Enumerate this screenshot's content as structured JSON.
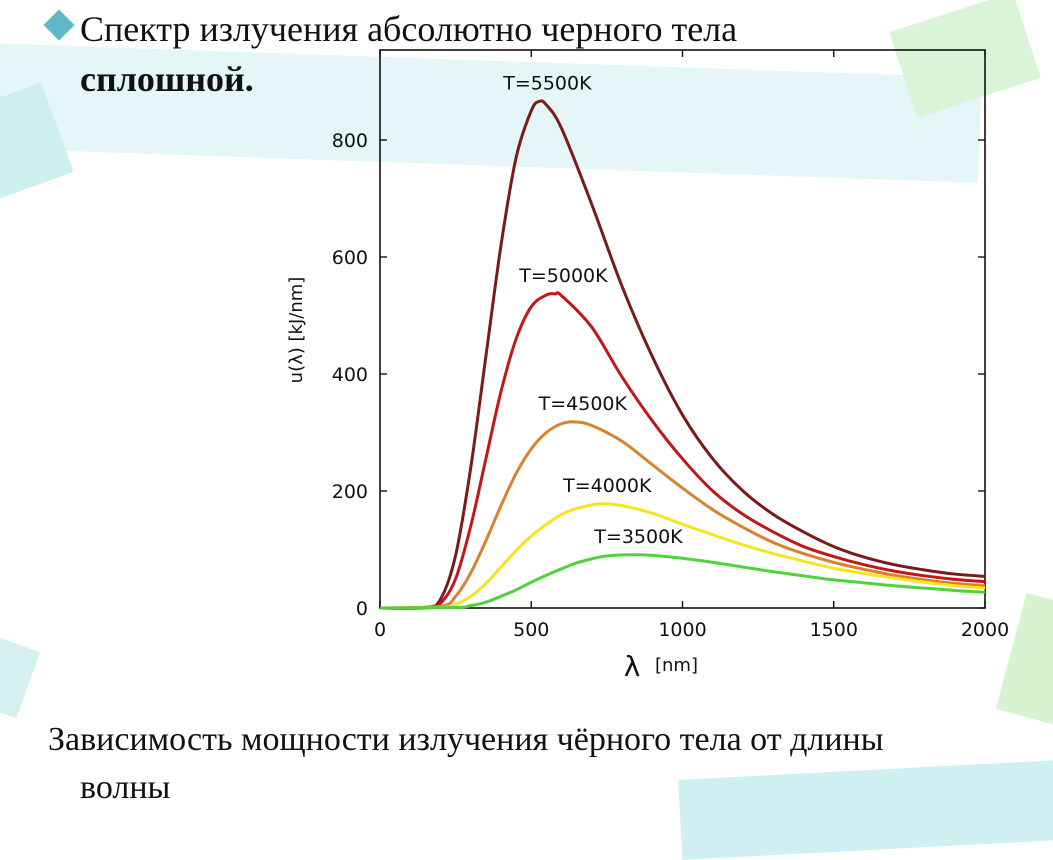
{
  "slide": {
    "title_line1": "Спектр излучения абсолютно черного тела",
    "title_line2": "сплошной.",
    "caption_line1": "Зависимость мощности излучения чёрного тела от длины",
    "caption_line2": "волны"
  },
  "colors": {
    "bullet": "#5fb8c8",
    "deco_teal": "#bfe9ee",
    "deco_green": "#d3f3c8"
  },
  "chart_data": {
    "type": "line",
    "xlabel_symbol": "λ",
    "xlabel_unit": "[nm]",
    "ylabel": "u(λ) [kJ/nm]",
    "xlim": [
      0,
      2000
    ],
    "ylim": [
      0,
      860
    ],
    "xticks": [
      0,
      500,
      1000,
      1500,
      2000
    ],
    "yticks": [
      0,
      200,
      400,
      600,
      800
    ],
    "grid": false,
    "series": [
      {
        "name": "T=5500K",
        "color": "#7a1a1a",
        "peak": [
          527,
          866
        ],
        "x": [
          0,
          150,
          200,
          250,
          300,
          350,
          400,
          450,
          500,
          527,
          550,
          600,
          700,
          800,
          900,
          1000,
          1100,
          1200,
          1300,
          1400,
          1500,
          1600,
          1700,
          1800,
          1900,
          2000
        ],
        "y": [
          0,
          1,
          15,
          90,
          240,
          430,
          620,
          770,
          850,
          866,
          860,
          820,
          690,
          550,
          430,
          330,
          255,
          200,
          160,
          130,
          105,
          87,
          74,
          65,
          58,
          54
        ]
      },
      {
        "name": "T=5000K",
        "color": "#c01818",
        "peak": [
          580,
          537
        ],
        "x": [
          0,
          150,
          200,
          250,
          300,
          350,
          400,
          450,
          500,
          550,
          580,
          600,
          700,
          800,
          900,
          1000,
          1100,
          1200,
          1300,
          1400,
          1500,
          1600,
          1700,
          1800,
          1900,
          2000
        ],
        "y": [
          0,
          0,
          8,
          50,
          140,
          255,
          370,
          460,
          515,
          535,
          537,
          534,
          480,
          395,
          320,
          255,
          200,
          160,
          130,
          105,
          88,
          74,
          63,
          55,
          49,
          45
        ]
      },
      {
        "name": "T=4500K",
        "color": "#d9822e",
        "peak": [
          644,
          318
        ],
        "x": [
          0,
          200,
          250,
          300,
          350,
          400,
          450,
          500,
          550,
          600,
          644,
          700,
          800,
          900,
          1000,
          1100,
          1200,
          1300,
          1400,
          1500,
          1600,
          1700,
          1800,
          1900,
          2000
        ],
        "y": [
          0,
          3,
          20,
          60,
          115,
          175,
          230,
          272,
          300,
          315,
          318,
          312,
          285,
          245,
          205,
          168,
          138,
          112,
          93,
          78,
          66,
          56,
          48,
          42,
          38
        ]
      },
      {
        "name": "T=4000K",
        "color": "#f2e61e",
        "peak": [
          725,
          178
        ],
        "x": [
          0,
          200,
          250,
          300,
          350,
          400,
          450,
          500,
          550,
          600,
          650,
          725,
          800,
          900,
          1000,
          1100,
          1200,
          1300,
          1400,
          1500,
          1600,
          1700,
          1800,
          1900,
          2000
        ],
        "y": [
          0,
          1,
          6,
          20,
          42,
          70,
          98,
          123,
          143,
          160,
          170,
          178,
          175,
          162,
          143,
          125,
          108,
          93,
          80,
          68,
          59,
          51,
          44,
          38,
          34
        ]
      },
      {
        "name": "T=3500K",
        "color": "#4fd23c",
        "peak": [
          828,
          91
        ],
        "x": [
          0,
          250,
          300,
          350,
          400,
          450,
          500,
          550,
          600,
          650,
          700,
          750,
          828,
          900,
          1000,
          1100,
          1200,
          1300,
          1400,
          1500,
          1600,
          1700,
          1800,
          1900,
          2000
        ],
        "y": [
          0,
          1,
          4,
          10,
          20,
          31,
          44,
          56,
          67,
          77,
          84,
          89,
          91,
          90,
          85,
          78,
          70,
          62,
          55,
          48,
          43,
          38,
          34,
          30,
          27
        ]
      }
    ]
  }
}
